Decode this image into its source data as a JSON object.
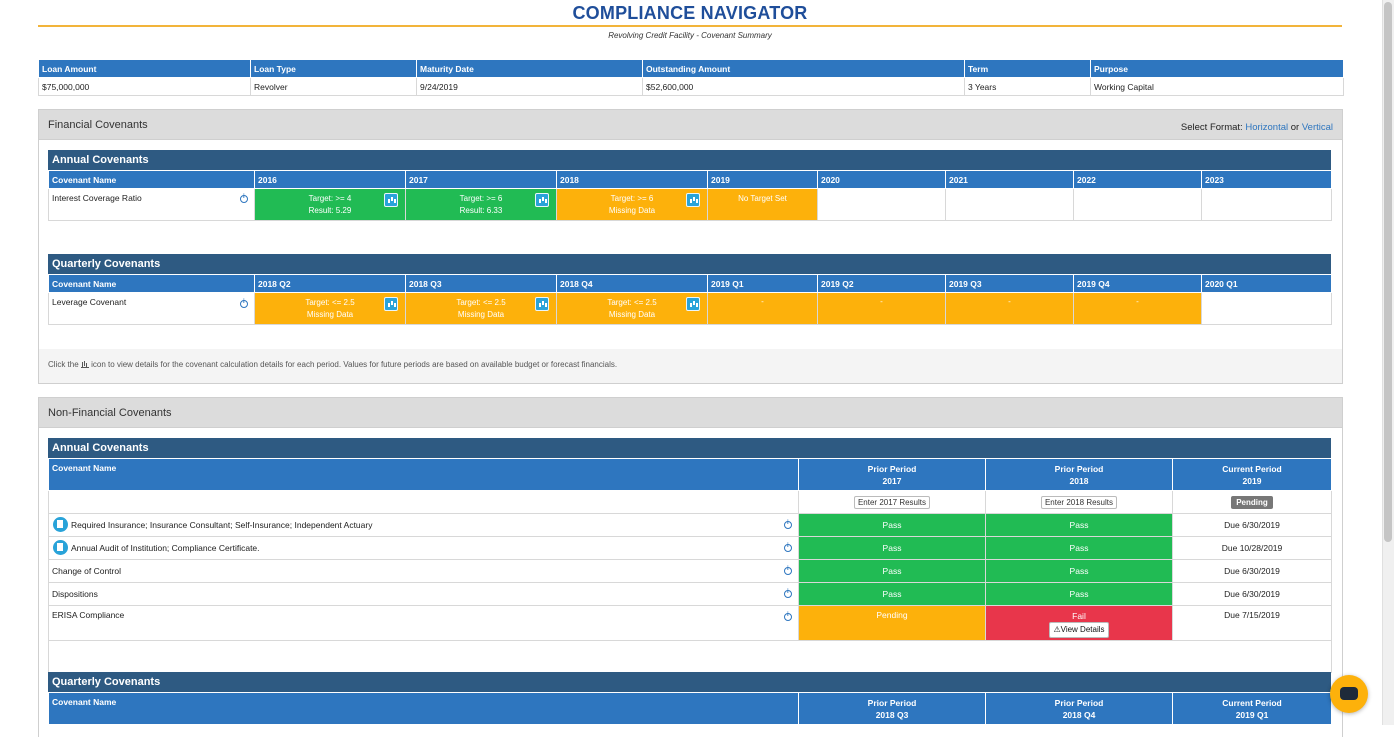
{
  "header": {
    "title": "COMPLIANCE NAVIGATOR",
    "subtitle": "Revolving Credit Facility - Covenant Summary"
  },
  "loan": {
    "headers": [
      "Loan Amount",
      "Loan Type",
      "Maturity Date",
      "Outstanding Amount",
      "Term",
      "Purpose"
    ],
    "values": [
      "$75,000,000",
      "Revolver",
      "9/24/2019",
      "$52,600,000",
      "3 Years",
      "Working Capital"
    ]
  },
  "financial": {
    "panel_title": "Financial Covenants",
    "format_label": "Select Format:",
    "format_horizontal": "Horizontal",
    "format_or": "or",
    "format_vertical": "Vertical",
    "annual": {
      "title": "Annual Covenants",
      "name_header": "Covenant Name",
      "periods": [
        "2016",
        "2017",
        "2018",
        "2019",
        "2020",
        "2021",
        "2022",
        "2023"
      ],
      "row_name": "Interest Coverage Ratio",
      "cells": [
        {
          "line1": "Target: >= 4",
          "line2": "Result: 5.29",
          "status": "green"
        },
        {
          "line1": "Target: >= 6",
          "line2": "Result: 6.33",
          "status": "green"
        },
        {
          "line1": "Target: >= 6",
          "line2": "Missing Data",
          "status": "orange"
        },
        {
          "line1": "No Target Set",
          "line2": "",
          "status": "orange"
        }
      ]
    },
    "quarterly": {
      "title": "Quarterly Covenants",
      "name_header": "Covenant Name",
      "periods": [
        "2018 Q2",
        "2018 Q3",
        "2018 Q4",
        "2019 Q1",
        "2019 Q2",
        "2019 Q3",
        "2019 Q4",
        "2020 Q1"
      ],
      "row_name": "Leverage Covenant",
      "cells": [
        {
          "line1": "Target: <= 2.5",
          "line2": "Missing Data",
          "status": "orange"
        },
        {
          "line1": "Target: <= 2.5",
          "line2": "Missing Data",
          "status": "orange"
        },
        {
          "line1": "Target: <= 2.5",
          "line2": "Missing Data",
          "status": "orange"
        },
        {
          "line1": "-",
          "line2": "",
          "status": "orange"
        },
        {
          "line1": "-",
          "line2": "",
          "status": "orange"
        },
        {
          "line1": "-",
          "line2": "",
          "status": "orange"
        },
        {
          "line1": "-",
          "line2": "",
          "status": "orange"
        }
      ]
    },
    "footnote_pre": "Click the",
    "footnote_post": "icon to view details for the covenant calculation details for each period. Values for future periods are based on available budget or forecast financials."
  },
  "nonfinancial": {
    "panel_title": "Non-Financial Covenants",
    "annual": {
      "title": "Annual Covenants",
      "name_header": "Covenant Name",
      "col1": {
        "label": "Prior Period",
        "year": "2017",
        "button": "Enter 2017 Results"
      },
      "col2": {
        "label": "Prior Period",
        "year": "2018",
        "button": "Enter 2018 Results"
      },
      "col3": {
        "label": "Current Period",
        "year": "2019",
        "badge": "Pending"
      },
      "rows": [
        {
          "name": "Required Insurance; Insurance Consultant; Self-Insurance; Independent Actuary",
          "c1": "Pass",
          "c2": "Pass",
          "due": "Due 6/30/2019"
        },
        {
          "name": "Annual Audit of Institution; Compliance Certificate.",
          "c1": "Pass",
          "c2": "Pass",
          "due": "Due 10/28/2019"
        },
        {
          "name": "Change of Control",
          "c1": "Pass",
          "c2": "Pass",
          "due": "Due 6/30/2019"
        },
        {
          "name": "Dispositions",
          "c1": "Pass",
          "c2": "Pass",
          "due": "Due 6/30/2019"
        },
        {
          "name": "ERISA Compliance",
          "c1": "Pending",
          "c2": "Fail",
          "c2_button": "View Details",
          "due": "Due 7/15/2019"
        }
      ]
    },
    "quarterly": {
      "title": "Quarterly Covenants",
      "name_header": "Covenant Name",
      "col1": {
        "label": "Prior Period",
        "period": "2018 Q3"
      },
      "col2": {
        "label": "Prior Period",
        "period": "2018 Q4"
      },
      "col3": {
        "label": "Current Period",
        "period": "2019 Q1"
      }
    }
  },
  "colors": {
    "header_blue": "#2e76bf",
    "dark_bar": "#2e5a82",
    "pass_green": "#21bb54",
    "pending_orange": "#fdb10b",
    "fail_red": "#e8364b",
    "title_blue": "#1f4e9a"
  }
}
